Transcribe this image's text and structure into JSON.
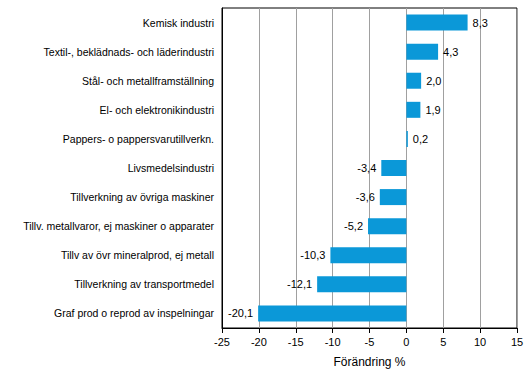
{
  "chart_data": {
    "type": "bar",
    "orientation": "horizontal",
    "categories": [
      "Kemisk industri",
      "Textil-, beklädnads- och läderindustri",
      "Stål- och metallframställning",
      "El- och elektronikindustri",
      "Pappers- o pappersvarutillverkn.",
      "Livsmedelsindustri",
      "Tillverkning av övriga maskiner",
      "Tillv. metallvaror, ej maskiner o apparater",
      "Tillv av övr mineralprod, ej metall",
      "Tillverkning av transportmedel",
      "Graf prod o reprod av inspelningar"
    ],
    "values": [
      8.3,
      4.3,
      2.0,
      1.9,
      0.2,
      -3.4,
      -3.6,
      -5.2,
      -10.3,
      -12.1,
      -20.1
    ],
    "value_labels": [
      "8,3",
      "4,3",
      "2,0",
      "1,9",
      "0,2",
      "-3,4",
      "-3,6",
      "-5,2",
      "-10,3",
      "-12,1",
      "-20,1"
    ],
    "data_labels": true,
    "color": "#0b98d8",
    "x_label": "Förändring %",
    "xlim": [
      -25,
      15
    ],
    "xticks": [
      -25,
      -20,
      -15,
      -10,
      -5,
      0,
      5,
      10,
      15
    ],
    "grid": true
  }
}
